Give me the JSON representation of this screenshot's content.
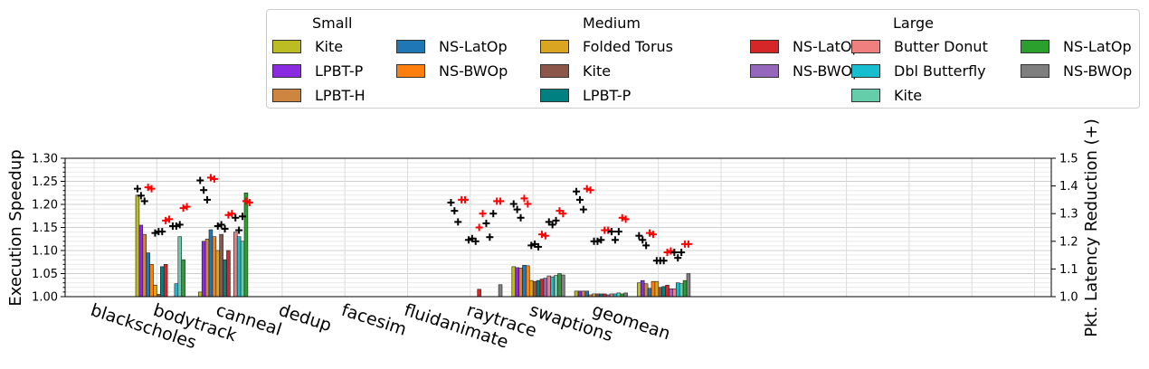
{
  "chart_data": {
    "type": "bar",
    "ylabel_left": "Execution Speedup",
    "ylabel_right": "Pkt. Latency Reduction (+)",
    "ylim_left": [
      1.0,
      1.3
    ],
    "ylim_right": [
      1.0,
      1.5
    ],
    "yticks_left": [
      "1.00",
      "1.05",
      "1.10",
      "1.15",
      "1.20",
      "1.25",
      "1.30"
    ],
    "yticks_right": [
      "1.0",
      "1.1",
      "1.2",
      "1.3",
      "1.4",
      "1.5"
    ],
    "grid": true,
    "categories": [
      "blackscholes",
      "bodytrack",
      "canneal",
      "dedup",
      "facesim",
      "fluidanimate",
      "raytrace",
      "swaptions",
      "geomean"
    ],
    "legend": {
      "groups": [
        "Small",
        "Medium",
        "Large"
      ],
      "items": [
        {
          "group": "Small",
          "label": "Kite",
          "color": "#bcbd22"
        },
        {
          "group": "Small",
          "label": "LPBT-P",
          "color": "#8a2be2"
        },
        {
          "group": "Small",
          "label": "LPBT-H",
          "color": "#cd853f"
        },
        {
          "group": "Small",
          "label": "NS-LatOp",
          "color": "#1f77b4"
        },
        {
          "group": "Small",
          "label": "NS-BWOp",
          "color": "#ff7f0e"
        },
        {
          "group": "Medium",
          "label": "Folded Torus",
          "color": "#daa520"
        },
        {
          "group": "Medium",
          "label": "Kite",
          "color": "#8c564b"
        },
        {
          "group": "Medium",
          "label": "LPBT-P",
          "color": "#008080"
        },
        {
          "group": "Medium",
          "label": "NS-LatOp",
          "color": "#d62728"
        },
        {
          "group": "Medium",
          "label": "NS-BWOp",
          "color": "#9467bd"
        },
        {
          "group": "Large",
          "label": "Butter Donut",
          "color": "#f08080"
        },
        {
          "group": "Large",
          "label": "Dbl Butterfly",
          "color": "#17becf"
        },
        {
          "group": "Large",
          "label": "Kite",
          "color": "#66cdaa"
        },
        {
          "group": "Large",
          "label": "NS-LatOp",
          "color": "#2ca02c"
        },
        {
          "group": "Large",
          "label": "NS-BWOp",
          "color": "#7f7f7f"
        }
      ]
    },
    "speedup_series_order": [
      "Small Kite",
      "Small LPBT-P",
      "Small LPBT-H",
      "Small NS-LatOp",
      "Small NS-BWOp",
      "Medium Folded Torus",
      "Medium Kite",
      "Medium LPBT-P",
      "Medium NS-LatOp",
      "Medium NS-BWOp",
      "Large Butter Donut",
      "Large Dbl Butterfly",
      "Large Kite",
      "Large NS-LatOp",
      "Large NS-BWOp"
    ],
    "speedup_values": {
      "blackscholes": [
        1.22,
        1.155,
        1.135,
        1.095,
        1.07,
        1.025,
        1.005,
        1.065,
        1.07,
        1.0,
        1.0,
        1.028,
        1.13,
        1.08,
        1.0
      ],
      "bodytrack": [
        1.01,
        1.12,
        1.125,
        1.145,
        1.13,
        1.1,
        1.135,
        1.08,
        1.1,
        1.0,
        1.14,
        1.13,
        1.12,
        1.225,
        1.0
      ],
      "canneal": [
        1.0,
        1.0,
        1.0,
        1.0,
        1.0,
        1.0,
        1.0,
        1.0,
        1.0,
        1.0,
        1.0,
        1.0,
        1.0,
        1.0,
        1.0
      ],
      "dedup": [
        1.0,
        1.0,
        1.0,
        1.0,
        1.0,
        1.0,
        1.0,
        1.0,
        1.0,
        1.0,
        1.0,
        1.0,
        1.0,
        1.0,
        1.0
      ],
      "facesim": [
        1.0,
        1.0,
        1.0,
        1.0,
        1.0,
        1.0,
        1.0,
        1.0,
        1.0,
        1.0,
        1.0,
        1.0,
        1.0,
        1.0,
        1.0
      ],
      "fluidanimate": [
        1.0,
        1.0,
        1.0,
        1.0,
        1.0,
        1.0,
        1.0,
        1.0,
        1.016,
        1.0,
        1.0,
        1.0,
        1.0,
        1.0,
        1.026
      ],
      "raytrace": [
        1.065,
        1.063,
        1.062,
        1.068,
        1.067,
        1.035,
        1.033,
        1.035,
        1.038,
        1.04,
        1.045,
        1.043,
        1.046,
        1.05,
        1.047
      ],
      "swaptions": [
        1.012,
        1.012,
        1.012,
        1.012,
        1.004,
        1.006,
        1.006,
        1.006,
        1.006,
        1.004,
        1.006,
        1.006,
        1.008,
        1.006,
        1.008
      ],
      "geomean": [
        1.03,
        1.035,
        1.028,
        1.018,
        1.033,
        1.033,
        1.02,
        1.022,
        1.025,
        1.017,
        1.017,
        1.03,
        1.028,
        1.035,
        1.05
      ]
    },
    "latency_reduction_points": {
      "blackscholes": [
        {
          "latency": 1.39,
          "color": "black"
        },
        {
          "latency": 1.365,
          "color": "black"
        },
        {
          "latency": 1.345,
          "color": "black"
        },
        {
          "latency": 1.395,
          "color": "red"
        },
        {
          "latency": 1.39,
          "color": "red"
        },
        {
          "latency": 1.23,
          "color": "black"
        },
        {
          "latency": 1.235,
          "color": "black"
        },
        {
          "latency": 1.235,
          "color": "black"
        },
        {
          "latency": 1.275,
          "color": "red"
        },
        {
          "latency": 1.28,
          "color": "red"
        },
        {
          "latency": 1.255,
          "color": "black"
        },
        {
          "latency": 1.255,
          "color": "black"
        },
        {
          "latency": 1.26,
          "color": "black"
        },
        {
          "latency": 1.32,
          "color": "red"
        },
        {
          "latency": 1.325,
          "color": "red"
        }
      ],
      "bodytrack": [
        {
          "latency": 1.42,
          "color": "black"
        },
        {
          "latency": 1.385,
          "color": "black"
        },
        {
          "latency": 1.35,
          "color": "black"
        },
        {
          "latency": 1.43,
          "color": "red"
        },
        {
          "latency": 1.425,
          "color": "red"
        },
        {
          "latency": 1.255,
          "color": "black"
        },
        {
          "latency": 1.26,
          "color": "black"
        },
        {
          "latency": 1.245,
          "color": "black"
        },
        {
          "latency": 1.295,
          "color": "red"
        },
        {
          "latency": 1.3,
          "color": "red"
        },
        {
          "latency": 1.285,
          "color": "black"
        },
        {
          "latency": 1.24,
          "color": "black"
        },
        {
          "latency": 1.29,
          "color": "black"
        },
        {
          "latency": 1.345,
          "color": "red"
        },
        {
          "latency": 1.34,
          "color": "red"
        }
      ],
      "fluidanimate": [
        {
          "latency": 1.34,
          "color": "black"
        },
        {
          "latency": 1.31,
          "color": "black"
        },
        {
          "latency": 1.27,
          "color": "black"
        },
        {
          "latency": 1.35,
          "color": "red"
        },
        {
          "latency": 1.35,
          "color": "red"
        },
        {
          "latency": 1.205,
          "color": "black"
        },
        {
          "latency": 1.21,
          "color": "black"
        },
        {
          "latency": 1.2,
          "color": "black"
        },
        {
          "latency": 1.25,
          "color": "red"
        },
        {
          "latency": 1.3,
          "color": "red"
        },
        {
          "latency": 1.265,
          "color": "black"
        },
        {
          "latency": 1.215,
          "color": "black"
        },
        {
          "latency": 1.3,
          "color": "black"
        },
        {
          "latency": 1.345,
          "color": "red"
        },
        {
          "latency": 1.345,
          "color": "red"
        }
      ],
      "raytrace": [
        {
          "latency": 1.335,
          "color": "black"
        },
        {
          "latency": 1.315,
          "color": "black"
        },
        {
          "latency": 1.285,
          "color": "black"
        },
        {
          "latency": 1.355,
          "color": "red"
        },
        {
          "latency": 1.335,
          "color": "red"
        },
        {
          "latency": 1.185,
          "color": "black"
        },
        {
          "latency": 1.19,
          "color": "black"
        },
        {
          "latency": 1.18,
          "color": "black"
        },
        {
          "latency": 1.225,
          "color": "red"
        },
        {
          "latency": 1.22,
          "color": "red"
        },
        {
          "latency": 1.27,
          "color": "black"
        },
        {
          "latency": 1.26,
          "color": "black"
        },
        {
          "latency": 1.275,
          "color": "black"
        },
        {
          "latency": 1.31,
          "color": "red"
        },
        {
          "latency": 1.3,
          "color": "red"
        }
      ],
      "swaptions": [
        {
          "latency": 1.38,
          "color": "black"
        },
        {
          "latency": 1.35,
          "color": "black"
        },
        {
          "latency": 1.315,
          "color": "black"
        },
        {
          "latency": 1.39,
          "color": "red"
        },
        {
          "latency": 1.385,
          "color": "red"
        },
        {
          "latency": 1.2,
          "color": "black"
        },
        {
          "latency": 1.2,
          "color": "black"
        },
        {
          "latency": 1.205,
          "color": "black"
        },
        {
          "latency": 1.24,
          "color": "red"
        },
        {
          "latency": 1.24,
          "color": "red"
        },
        {
          "latency": 1.235,
          "color": "black"
        },
        {
          "latency": 1.205,
          "color": "black"
        },
        {
          "latency": 1.235,
          "color": "black"
        },
        {
          "latency": 1.285,
          "color": "red"
        },
        {
          "latency": 1.28,
          "color": "red"
        }
      ],
      "geomean": [
        {
          "latency": 1.22,
          "color": "black"
        },
        {
          "latency": 1.205,
          "color": "black"
        },
        {
          "latency": 1.185,
          "color": "black"
        },
        {
          "latency": 1.23,
          "color": "red"
        },
        {
          "latency": 1.225,
          "color": "red"
        },
        {
          "latency": 1.13,
          "color": "black"
        },
        {
          "latency": 1.13,
          "color": "black"
        },
        {
          "latency": 1.13,
          "color": "black"
        },
        {
          "latency": 1.16,
          "color": "red"
        },
        {
          "latency": 1.165,
          "color": "red"
        },
        {
          "latency": 1.16,
          "color": "black"
        },
        {
          "latency": 1.14,
          "color": "black"
        },
        {
          "latency": 1.16,
          "color": "black"
        },
        {
          "latency": 1.19,
          "color": "red"
        },
        {
          "latency": 1.19,
          "color": "red"
        }
      ]
    }
  }
}
